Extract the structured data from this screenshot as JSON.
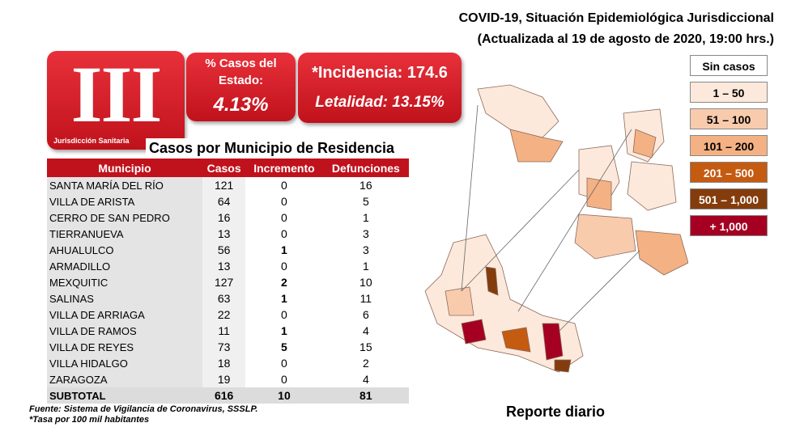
{
  "header": {
    "title": "COVID-19, Situación Epidemiológica Jurisdiccional",
    "subtitle": "(Actualizada al 19 de agosto de 2020, 19:00 hrs.)"
  },
  "badge": {
    "numeral": "III",
    "label": "Jurisdicción Sanitaria"
  },
  "share": {
    "label": "% Casos del Estado:",
    "value": "4.13%"
  },
  "rates": {
    "incidence": "*Incidencia: 174.6",
    "lethality": "Letalidad: 13.15%"
  },
  "table": {
    "title": "Casos por Municipio  de Residencia",
    "columns": [
      "Municipio",
      "Casos",
      "Incremento",
      "Defunciones"
    ],
    "rows": [
      [
        "SANTA MARÍA DEL RÍO",
        121,
        0,
        16
      ],
      [
        "VILLA DE ARISTA",
        64,
        0,
        5
      ],
      [
        "CERRO DE SAN PEDRO",
        16,
        0,
        1
      ],
      [
        "TIERRANUEVA",
        13,
        0,
        3
      ],
      [
        "AHUALULCO",
        56,
        1,
        3
      ],
      [
        "ARMADILLO",
        13,
        0,
        1
      ],
      [
        "MEXQUITIC",
        127,
        2,
        10
      ],
      [
        "SALINAS",
        63,
        1,
        11
      ],
      [
        "VILLA DE ARRIAGA",
        22,
        0,
        6
      ],
      [
        "VILLA DE RAMOS",
        11,
        1,
        4
      ],
      [
        "VILLA DE REYES",
        73,
        5,
        15
      ],
      [
        "VILLA HIDALGO",
        18,
        0,
        2
      ],
      [
        "ZARAGOZA",
        19,
        0,
        4
      ]
    ],
    "total": [
      "SUBTOTAL",
      616,
      10,
      81
    ]
  },
  "notes": [
    "Fuente: Sistema de Vigilancia  de Coronavirus, SSSLP.",
    "*Tasa por 100 mil habitantes"
  ],
  "legend": [
    {
      "label": "Sin casos",
      "color": "#ffffff"
    },
    {
      "label": "1 – 50",
      "color": "#fde9dc"
    },
    {
      "label": "51 – 100",
      "color": "#f8cbad"
    },
    {
      "label": "101 – 200",
      "color": "#f4b183"
    },
    {
      "label": "201 – 500",
      "color": "#c55a11"
    },
    {
      "label": "501 – 1,000",
      "color": "#843c0c"
    },
    {
      "label": "+ 1,000",
      "color": "#a50021"
    }
  ],
  "footer": "Reporte diario"
}
